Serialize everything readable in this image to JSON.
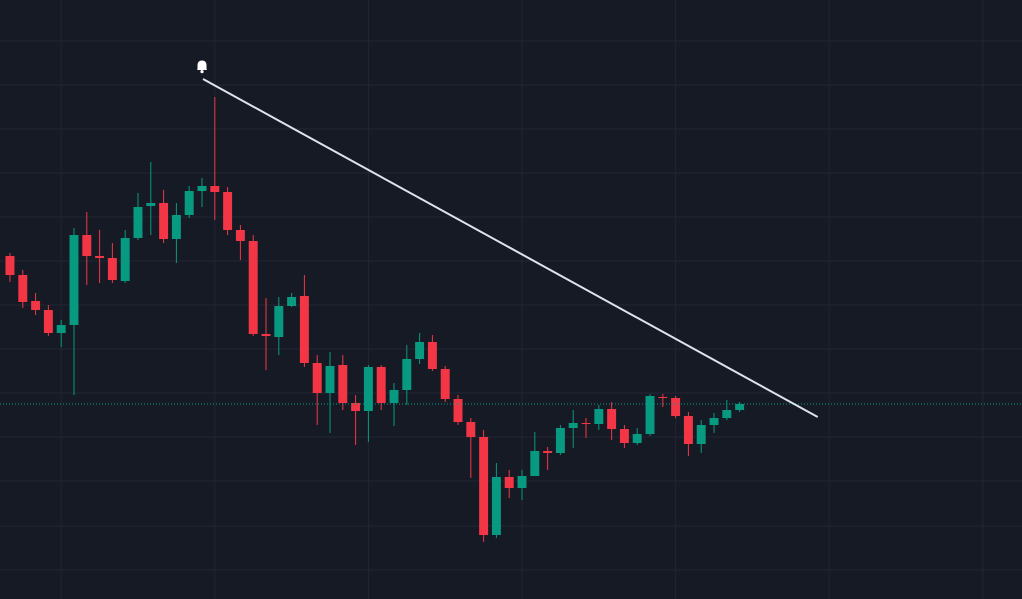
{
  "chart_data": {
    "type": "candlestick",
    "x": [
      0,
      1,
      2,
      3,
      4,
      5,
      6,
      7,
      8,
      9,
      10,
      11,
      12,
      13,
      14,
      15,
      16,
      17,
      18,
      19,
      20,
      21,
      22,
      23,
      24,
      25,
      26,
      27,
      28,
      29,
      30,
      31,
      32,
      33,
      34,
      35,
      36,
      37,
      38,
      39,
      40,
      41,
      42,
      43,
      44,
      45,
      46,
      47,
      48,
      49,
      50,
      51,
      52,
      53,
      54,
      55,
      56,
      57
    ],
    "open": [
      344,
      325,
      299,
      290,
      267,
      275,
      365,
      344,
      342,
      319,
      362,
      394,
      397,
      361,
      385,
      409,
      414,
      408,
      370,
      359,
      266,
      263,
      294,
      304,
      237,
      207,
      235,
      197,
      189,
      233,
      197,
      210,
      241,
      258,
      231,
      201,
      178,
      163,
      65,
      123,
      112,
      124,
      149,
      147,
      172,
      177,
      176,
      191,
      171,
      157,
      166,
      203,
      202,
      184,
      156,
      175,
      182,
      190
    ],
    "high": [
      347,
      330,
      307,
      295,
      280,
      372,
      388,
      370,
      357,
      370,
      407,
      438,
      410,
      397,
      414,
      422,
      503,
      413,
      375,
      365,
      302,
      303,
      307,
      325,
      245,
      248,
      245,
      205,
      235,
      235,
      217,
      255,
      267,
      265,
      234,
      205,
      182,
      170,
      137,
      130,
      130,
      168,
      153,
      175,
      190,
      182,
      195,
      198,
      175,
      172,
      206,
      206,
      204,
      188,
      180,
      187,
      200,
      198
    ],
    "low": [
      318,
      292,
      285,
      264,
      253,
      205,
      315,
      317,
      317,
      317,
      360,
      365,
      357,
      337,
      382,
      393,
      380,
      365,
      340,
      264,
      230,
      245,
      293,
      233,
      175,
      167,
      190,
      155,
      158,
      190,
      174,
      195,
      236,
      229,
      198,
      175,
      122,
      58,
      62,
      102,
      100,
      124,
      130,
      145,
      152,
      162,
      170,
      160,
      152,
      155,
      164,
      193,
      182,
      144,
      147,
      167,
      180,
      188
    ],
    "close": [
      325,
      298,
      290,
      267,
      275,
      365,
      344,
      342,
      320,
      362,
      393,
      397,
      361,
      385,
      409,
      414,
      408,
      370,
      359,
      266,
      264,
      294,
      303,
      237,
      207,
      234,
      197,
      189,
      233,
      197,
      210,
      241,
      258,
      231,
      201,
      178,
      163,
      65,
      123,
      112,
      124,
      149,
      147,
      172,
      177,
      176,
      191,
      171,
      157,
      166,
      204,
      202,
      184,
      156,
      175,
      182,
      190,
      196
    ],
    "up_color": "#089981",
    "down_color": "#f23645",
    "xlim": [
      -0.78,
      79.06
    ],
    "ylim": [
      1,
      600
    ],
    "xticks": [
      4,
      16,
      28,
      40,
      52,
      64,
      76
    ],
    "yticks": [
      559,
      515,
      471,
      427,
      383,
      339,
      295,
      251,
      207,
      163,
      119,
      74,
      30
    ],
    "grid": true,
    "price_line": true,
    "drawings": [
      {
        "type": "trend_line",
        "x": [
          15.08,
          63.1
        ],
        "y": [
          521,
          183
        ],
        "color": "#e0e3eb",
        "alert": true
      }
    ]
  }
}
